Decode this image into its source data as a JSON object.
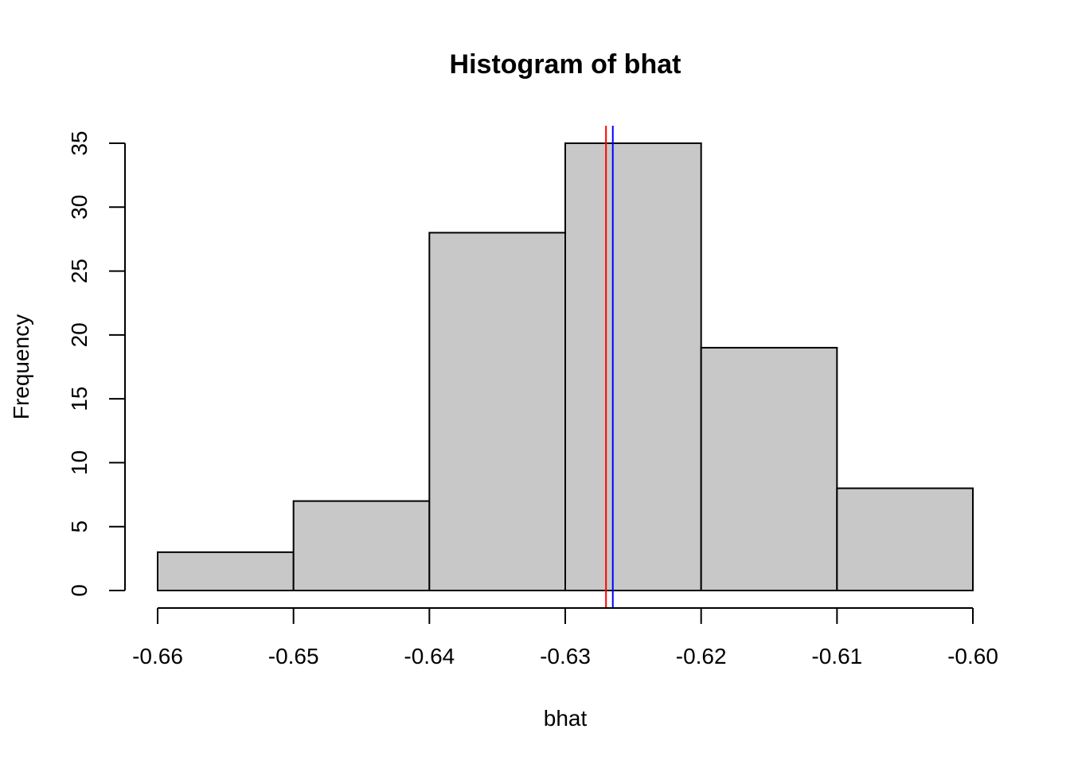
{
  "chart_data": {
    "type": "bar",
    "title": "Histogram of bhat",
    "xlabel": "bhat",
    "ylabel": "Frequency",
    "bins": [
      {
        "start": -0.66,
        "end": -0.65,
        "count": 3
      },
      {
        "start": -0.65,
        "end": -0.64,
        "count": 7
      },
      {
        "start": -0.64,
        "end": -0.63,
        "count": 28
      },
      {
        "start": -0.63,
        "end": -0.62,
        "count": 35
      },
      {
        "start": -0.62,
        "end": -0.61,
        "count": 19
      },
      {
        "start": -0.61,
        "end": -0.6,
        "count": 8
      }
    ],
    "xlim": [
      -0.66,
      -0.6
    ],
    "ylim": [
      0,
      35
    ],
    "x_ticks": [
      -0.66,
      -0.65,
      -0.64,
      -0.63,
      -0.62,
      -0.61,
      -0.6
    ],
    "x_tick_labels": [
      "-0.66",
      "-0.65",
      "-0.64",
      "-0.63",
      "-0.62",
      "-0.61",
      "-0.60"
    ],
    "y_ticks": [
      0,
      5,
      10,
      15,
      20,
      25,
      30,
      35
    ],
    "y_tick_labels": [
      "0",
      "5",
      "10",
      "15",
      "20",
      "25",
      "30",
      "35"
    ],
    "vlines": [
      {
        "x": -0.627,
        "color": "#ff0000"
      },
      {
        "x": -0.6265,
        "color": "#0000ff"
      }
    ],
    "bar_fill": "#c8c8c8",
    "grid": false
  }
}
